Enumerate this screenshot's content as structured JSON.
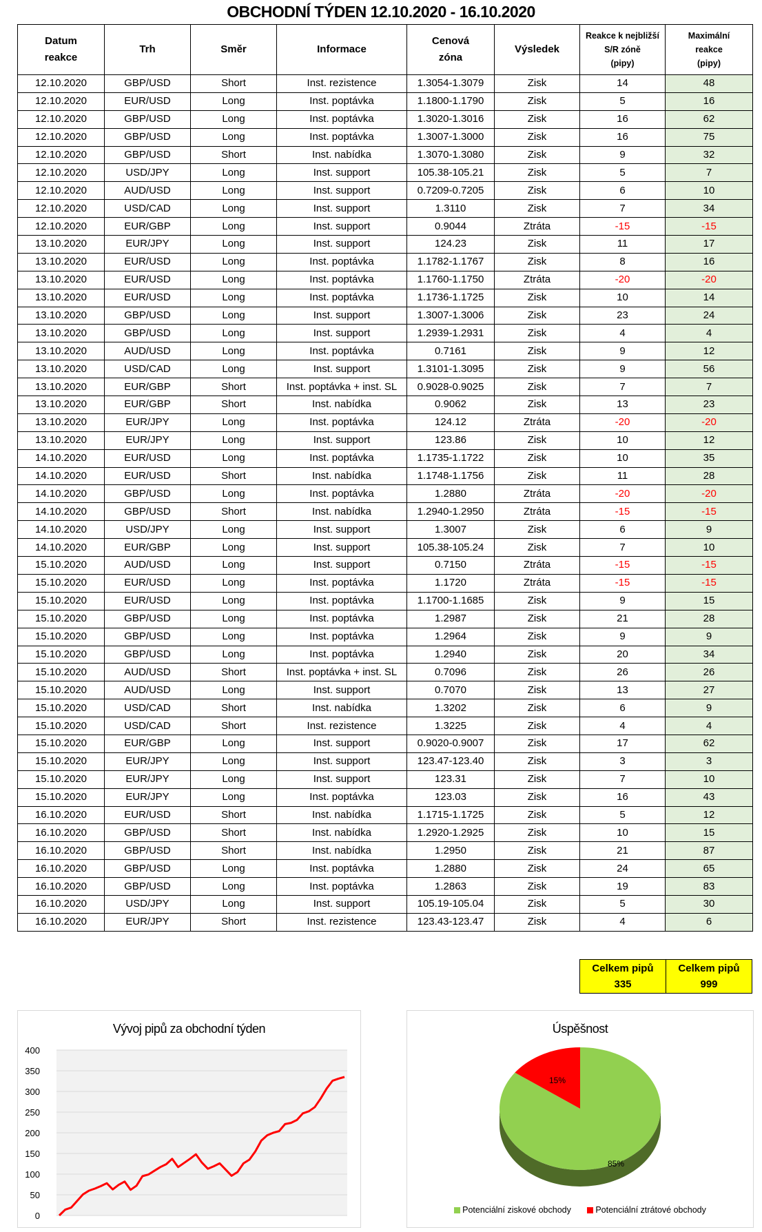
{
  "title": "OBCHODNÍ TÝDEN 12.10.2020 - 16.10.2020",
  "table": {
    "headers": [
      "Datum\nreakce",
      "Trh",
      "Směr",
      "Informace",
      "Cenová\nzóna",
      "Výsledek",
      "Reakce k nejbližší\nS/R zóně\n(pipy)",
      "Maximální\nreakce\n(pipy)"
    ],
    "rows": [
      [
        "12.10.2020",
        "GBP/USD",
        "Short",
        "Inst. rezistence",
        "1.3054-1.3079",
        "Zisk",
        "14",
        "48"
      ],
      [
        "12.10.2020",
        "EUR/USD",
        "Long",
        "Inst. poptávka",
        "1.1800-1.1790",
        "Zisk",
        "5",
        "16"
      ],
      [
        "12.10.2020",
        "GBP/USD",
        "Long",
        "Inst. poptávka",
        "1.3020-1.3016",
        "Zisk",
        "16",
        "62"
      ],
      [
        "12.10.2020",
        "GBP/USD",
        "Long",
        "Inst. poptávka",
        "1.3007-1.3000",
        "Zisk",
        "16",
        "75"
      ],
      [
        "12.10.2020",
        "GBP/USD",
        "Short",
        "Inst. nabídka",
        "1.3070-1.3080",
        "Zisk",
        "9",
        "32"
      ],
      [
        "12.10.2020",
        "USD/JPY",
        "Long",
        "Inst. support",
        "105.38-105.21",
        "Zisk",
        "5",
        "7"
      ],
      [
        "12.10.2020",
        "AUD/USD",
        "Long",
        "Inst. support",
        "0.7209-0.7205",
        "Zisk",
        "6",
        "10"
      ],
      [
        "12.10.2020",
        "USD/CAD",
        "Long",
        "Inst. support",
        "1.3110",
        "Zisk",
        "7",
        "34"
      ],
      [
        "12.10.2020",
        "EUR/GBP",
        "Long",
        "Inst. support",
        "0.9044",
        "Ztráta",
        "-15",
        "-15"
      ],
      [
        "13.10.2020",
        "EUR/JPY",
        "Long",
        "Inst. support",
        "124.23",
        "Zisk",
        "11",
        "17"
      ],
      [
        "13.10.2020",
        "EUR/USD",
        "Long",
        "Inst. poptávka",
        "1.1782-1.1767",
        "Zisk",
        "8",
        "16"
      ],
      [
        "13.10.2020",
        "EUR/USD",
        "Long",
        "Inst. poptávka",
        "1.1760-1.1750",
        "Ztráta",
        "-20",
        "-20"
      ],
      [
        "13.10.2020",
        "EUR/USD",
        "Long",
        "Inst. poptávka",
        "1.1736-1.1725",
        "Zisk",
        "10",
        "14"
      ],
      [
        "13.10.2020",
        "GBP/USD",
        "Long",
        "Inst. support",
        "1.3007-1.3006",
        "Zisk",
        "23",
        "24"
      ],
      [
        "13.10.2020",
        "GBP/USD",
        "Long",
        "Inst. support",
        "1.2939-1.2931",
        "Zisk",
        "4",
        "4"
      ],
      [
        "13.10.2020",
        "AUD/USD",
        "Long",
        "Inst. poptávka",
        "0.7161",
        "Zisk",
        "9",
        "12"
      ],
      [
        "13.10.2020",
        "USD/CAD",
        "Long",
        "Inst. support",
        "1.3101-1.3095",
        "Zisk",
        "9",
        "56"
      ],
      [
        "13.10.2020",
        "EUR/GBP",
        "Short",
        "Inst. poptávka + inst. SL",
        "0.9028-0.9025",
        "Zisk",
        "7",
        "7"
      ],
      [
        "13.10.2020",
        "EUR/GBP",
        "Short",
        "Inst. nabídka",
        "0.9062",
        "Zisk",
        "13",
        "23"
      ],
      [
        "13.10.2020",
        "EUR/JPY",
        "Long",
        "Inst. poptávka",
        "124.12",
        "Ztráta",
        "-20",
        "-20"
      ],
      [
        "13.10.2020",
        "EUR/JPY",
        "Long",
        "Inst. support",
        "123.86",
        "Zisk",
        "10",
        "12"
      ],
      [
        "14.10.2020",
        "EUR/USD",
        "Long",
        "Inst. poptávka",
        "1.1735-1.1722",
        "Zisk",
        "10",
        "35"
      ],
      [
        "14.10.2020",
        "EUR/USD",
        "Short",
        "Inst. nabídka",
        "1.1748-1.1756",
        "Zisk",
        "11",
        "28"
      ],
      [
        "14.10.2020",
        "GBP/USD",
        "Long",
        "Inst. poptávka",
        "1.2880",
        "Ztráta",
        "-20",
        "-20"
      ],
      [
        "14.10.2020",
        "GBP/USD",
        "Short",
        "Inst. nabídka",
        "1.2940-1.2950",
        "Ztráta",
        "-15",
        "-15"
      ],
      [
        "14.10.2020",
        "USD/JPY",
        "Long",
        "Inst. support",
        "1.3007",
        "Zisk",
        "6",
        "9"
      ],
      [
        "14.10.2020",
        "EUR/GBP",
        "Long",
        "Inst. support",
        "105.38-105.24",
        "Zisk",
        "7",
        "10"
      ],
      [
        "15.10.2020",
        "AUD/USD",
        "Long",
        "Inst. support",
        "0.7150",
        "Ztráta",
        "-15",
        "-15"
      ],
      [
        "15.10.2020",
        "EUR/USD",
        "Long",
        "Inst. poptávka",
        "1.1720",
        "Ztráta",
        "-15",
        "-15"
      ],
      [
        "15.10.2020",
        "EUR/USD",
        "Long",
        "Inst. poptávka",
        "1.1700-1.1685",
        "Zisk",
        "9",
        "15"
      ],
      [
        "15.10.2020",
        "GBP/USD",
        "Long",
        "Inst. poptávka",
        "1.2987",
        "Zisk",
        "21",
        "28"
      ],
      [
        "15.10.2020",
        "GBP/USD",
        "Long",
        "Inst. poptávka",
        "1.2964",
        "Zisk",
        "9",
        "9"
      ],
      [
        "15.10.2020",
        "GBP/USD",
        "Long",
        "Inst. poptávka",
        "1.2940",
        "Zisk",
        "20",
        "34"
      ],
      [
        "15.10.2020",
        "AUD/USD",
        "Short",
        "Inst. poptávka + inst. SL",
        "0.7096",
        "Zisk",
        "26",
        "26"
      ],
      [
        "15.10.2020",
        "AUD/USD",
        "Long",
        "Inst. support",
        "0.7070",
        "Zisk",
        "13",
        "27"
      ],
      [
        "15.10.2020",
        "USD/CAD",
        "Short",
        "Inst. nabídka",
        "1.3202",
        "Zisk",
        "6",
        "9"
      ],
      [
        "15.10.2020",
        "USD/CAD",
        "Short",
        "Inst. rezistence",
        "1.3225",
        "Zisk",
        "4",
        "4"
      ],
      [
        "15.10.2020",
        "EUR/GBP",
        "Long",
        "Inst. support",
        "0.9020-0.9007",
        "Zisk",
        "17",
        "62"
      ],
      [
        "15.10.2020",
        "EUR/JPY",
        "Long",
        "Inst. support",
        "123.47-123.40",
        "Zisk",
        "3",
        "3"
      ],
      [
        "15.10.2020",
        "EUR/JPY",
        "Long",
        "Inst. support",
        "123.31",
        "Zisk",
        "7",
        "10"
      ],
      [
        "15.10.2020",
        "EUR/JPY",
        "Long",
        "Inst. poptávka",
        "123.03",
        "Zisk",
        "16",
        "43"
      ],
      [
        "16.10.2020",
        "EUR/USD",
        "Short",
        "Inst. nabídka",
        "1.1715-1.1725",
        "Zisk",
        "5",
        "12"
      ],
      [
        "16.10.2020",
        "GBP/USD",
        "Short",
        "Inst. nabídka",
        "1.2920-1.2925",
        "Zisk",
        "10",
        "15"
      ],
      [
        "16.10.2020",
        "GBP/USD",
        "Short",
        "Inst. nabídka",
        "1.2950",
        "Zisk",
        "21",
        "87"
      ],
      [
        "16.10.2020",
        "GBP/USD",
        "Long",
        "Inst. poptávka",
        "1.2880",
        "Zisk",
        "24",
        "65"
      ],
      [
        "16.10.2020",
        "GBP/USD",
        "Long",
        "Inst. poptávka",
        "1.2863",
        "Zisk",
        "19",
        "83"
      ],
      [
        "16.10.2020",
        "USD/JPY",
        "Long",
        "Inst. support",
        "105.19-105.04",
        "Zisk",
        "5",
        "30"
      ],
      [
        "16.10.2020",
        "EUR/JPY",
        "Short",
        "Inst. rezistence",
        "123.43-123.47",
        "Zisk",
        "4",
        "6"
      ]
    ]
  },
  "totals": {
    "reaction_label": "Celkem pipů",
    "reaction_value": "335",
    "max_label": "Celkem pipů",
    "max_value": "999"
  },
  "colors": {
    "green_cell": "#e2efda",
    "negative": "#ff0000",
    "totals_bg": "#ffff00",
    "line": "#ff0000",
    "pie_win": "#92d050",
    "pie_loss": "#ff0000"
  },
  "chart_data": [
    {
      "type": "line",
      "title": "Vývoj pipů za obchodní týden",
      "ylim": [
        0,
        400
      ],
      "yticks": [
        "0",
        "50",
        "100",
        "150",
        "200",
        "250",
        "300",
        "350",
        "400"
      ],
      "grid": true,
      "values": [
        0,
        14,
        19,
        35,
        51,
        60,
        65,
        71,
        78,
        63,
        74,
        82,
        62,
        72,
        95,
        99,
        108,
        117,
        124,
        137,
        117,
        127,
        137,
        148,
        128,
        113,
        119,
        126,
        111,
        96,
        105,
        126,
        135,
        155,
        181,
        194,
        200,
        204,
        221,
        224,
        231,
        247,
        252,
        262,
        283,
        307,
        326,
        331,
        335
      ]
    },
    {
      "type": "pie",
      "title": "Úspěšnost",
      "slices": [
        {
          "name": "Potenciální ziskové obchody",
          "value": 85,
          "label": "85%"
        },
        {
          "name": "Potenciální ztrátové obchody",
          "value": 15,
          "label": "15%"
        }
      ],
      "legend": "bottom"
    }
  ]
}
